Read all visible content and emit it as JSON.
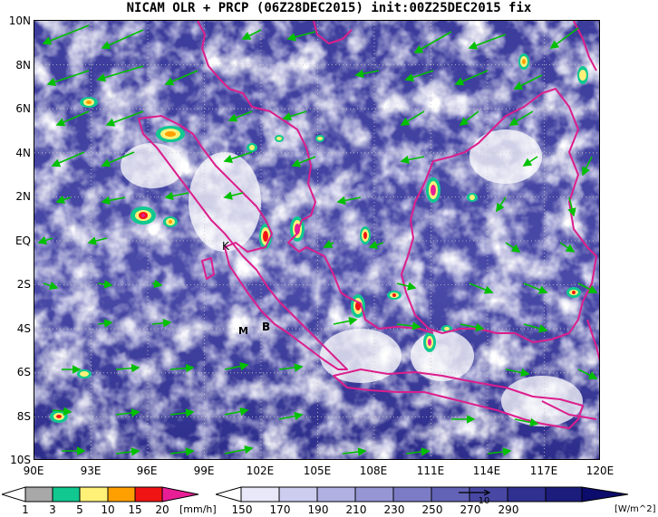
{
  "title": "NICAM OLR + PRCP (06Z28DEC2015) init:00Z25DEC2015 fix",
  "map": {
    "lat_labels": [
      "10N",
      "8N",
      "6N",
      "4N",
      "2N",
      "EQ",
      "2S",
      "4S",
      "6S",
      "8S",
      "10S"
    ],
    "lon_labels": [
      "90E",
      "93E",
      "96E",
      "99E",
      "102E",
      "105E",
      "108E",
      "111E",
      "114E",
      "117E",
      "120E"
    ],
    "place_markers": [
      "K",
      "M",
      "B"
    ]
  },
  "precip_colorbar": {
    "labels": [
      "1",
      "3",
      "5",
      "10",
      "15",
      "20"
    ],
    "unit": "[mm/h]",
    "colors": [
      "#ffffff",
      "#a8a8a8",
      "#10c890",
      "#fff078",
      "#ffa000",
      "#f01414",
      "#e81e96"
    ]
  },
  "olr_colorbar": {
    "labels": [
      "150",
      "170",
      "190",
      "210",
      "230",
      "250",
      "270",
      "290"
    ],
    "unit": "[W/m^2]",
    "vector_label": "10",
    "colors": [
      "#ffffff",
      "#e8e8f8",
      "#cdcdef",
      "#b0b0e2",
      "#9696d4",
      "#7c7cc6",
      "#6262b6",
      "#4848a4",
      "#303090",
      "#1c1c7c",
      "#0c0c6c"
    ]
  },
  "accent_colors": {
    "coastline": "#dc1e8c",
    "wind_vector": "#00c000",
    "grid": "#c8c8c8"
  }
}
